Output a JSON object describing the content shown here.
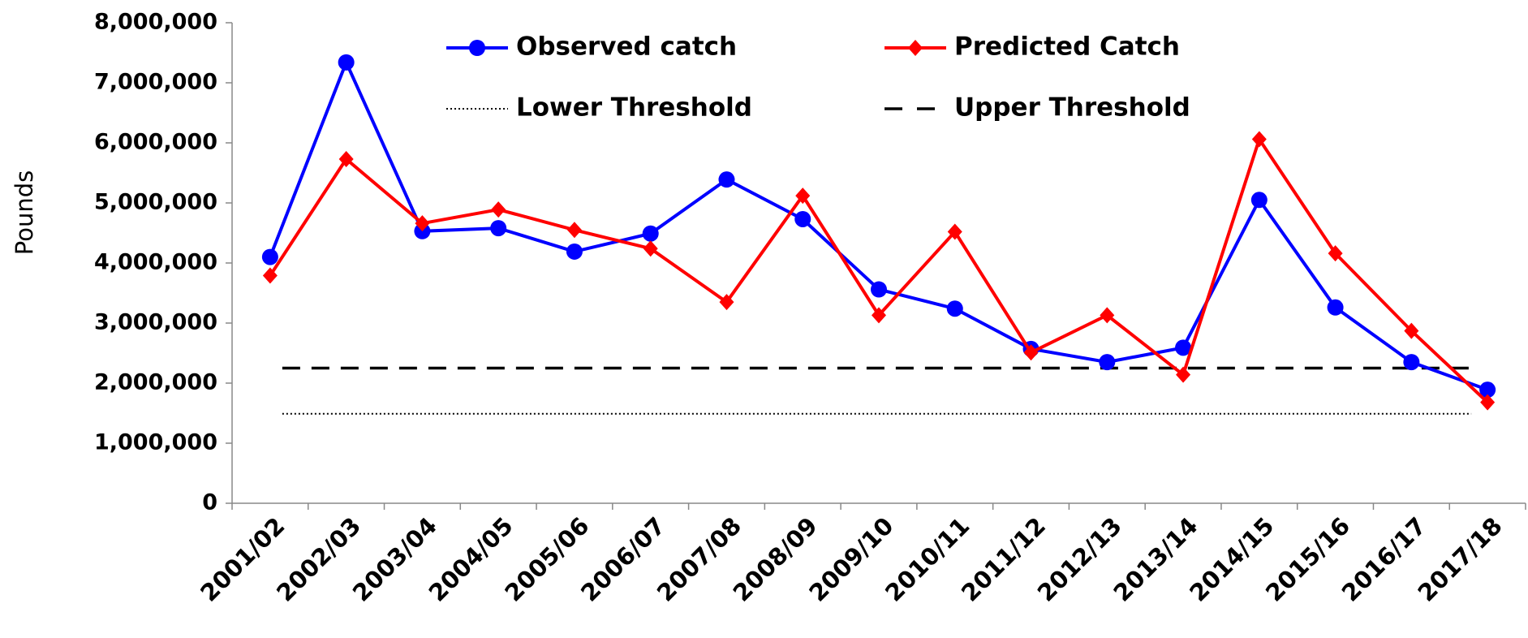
{
  "chart_data": {
    "type": "line",
    "ylabel": "Pounds",
    "categories": [
      "2001/02",
      "2002/03",
      "2003/04",
      "2004/05",
      "2005/06",
      "2006/07",
      "2007/08",
      "2008/09",
      "2009/10",
      "2010/11",
      "2011/12",
      "2012/13",
      "2013/14",
      "2014/15",
      "2015/16",
      "2016/17",
      "2017/18"
    ],
    "series": [
      {
        "name": "Observed catch",
        "color": "#0000ff",
        "marker": "circle",
        "values": [
          4100000,
          7340000,
          4530000,
          4580000,
          4190000,
          4490000,
          5390000,
          4730000,
          3560000,
          3240000,
          2570000,
          2350000,
          2590000,
          5050000,
          3260000,
          2350000,
          1890000
        ]
      },
      {
        "name": "Predicted Catch",
        "color": "#ff0000",
        "marker": "diamond",
        "values": [
          3790000,
          5730000,
          4660000,
          4890000,
          4550000,
          4240000,
          3350000,
          5120000,
          3130000,
          4520000,
          2510000,
          3130000,
          2140000,
          6060000,
          4160000,
          2870000,
          1680000
        ]
      }
    ],
    "thresholds": [
      {
        "name": "Lower Threshold",
        "value": 1490000,
        "color": "#000000",
        "style": "dotted"
      },
      {
        "name": "Upper Threshold",
        "value": 2250000,
        "color": "#000000",
        "style": "dashed"
      }
    ],
    "ylim": [
      0,
      8000000
    ],
    "yticks": [
      0,
      {
        "value": 1000000,
        "label": "1,000,000"
      },
      {
        "value": 2000000,
        "label": "2,000,000"
      },
      {
        "value": 3000000,
        "label": "3,000,000"
      },
      {
        "value": 4000000,
        "label": "4,000,000"
      },
      {
        "value": 5000000,
        "label": "5,000,000"
      },
      {
        "value": 6000000,
        "label": "6,000,000"
      },
      {
        "value": 7000000,
        "label": "7,000,000"
      },
      {
        "value": 8000000,
        "label": "8,000,000"
      }
    ],
    "grid": false
  }
}
